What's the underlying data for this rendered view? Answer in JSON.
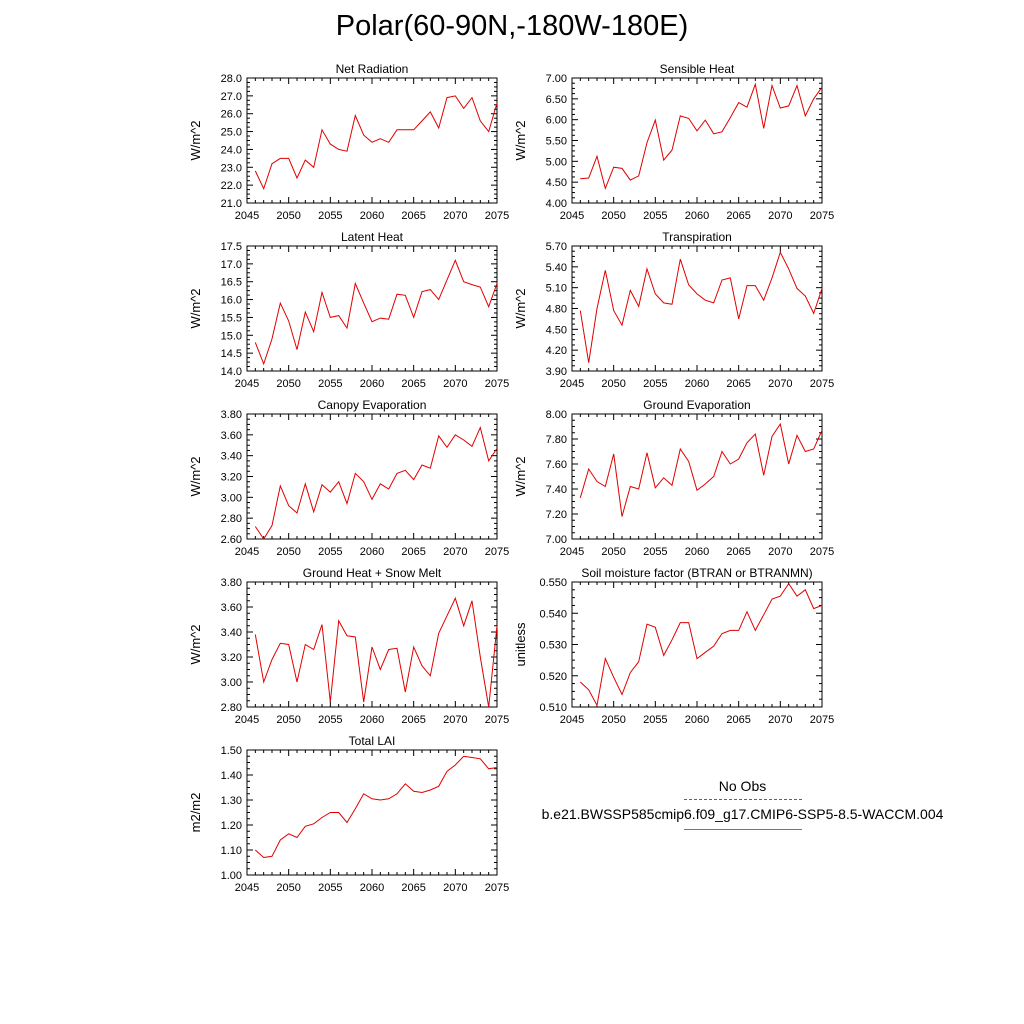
{
  "title": "Polar(60-90N,-180W-180E)",
  "legend": {
    "obs_label": "No Obs",
    "model_label": "b.e21.BWSSP585cmip6.f09_g17.CMIP6-SSP5-8.5-WACCM.004",
    "model_color": "#e00000"
  },
  "chart_data": [
    {
      "type": "line",
      "title": "Net Radiation",
      "ylabel": "W/m^2",
      "xlim": [
        2045,
        2075
      ],
      "ylim": [
        21.0,
        28.0
      ],
      "xticks": [
        "2045",
        "2050",
        "2055",
        "2060",
        "2065",
        "2070",
        "2075"
      ],
      "yticks": [
        "21.0",
        "22.0",
        "23.0",
        "24.0",
        "25.0",
        "26.0",
        "27.0",
        "28.0"
      ],
      "x": [
        2046,
        2047,
        2048,
        2049,
        2050,
        2051,
        2052,
        2053,
        2054,
        2055,
        2056,
        2057,
        2058,
        2059,
        2060,
        2061,
        2062,
        2063,
        2064,
        2065,
        2066,
        2067,
        2068,
        2069,
        2070,
        2071,
        2072,
        2073,
        2074,
        2075
      ],
      "series": [
        {
          "values": [
            22.8,
            21.8,
            23.2,
            23.5,
            23.5,
            22.4,
            23.4,
            23.0,
            25.1,
            24.3,
            24.0,
            23.9,
            25.9,
            24.8,
            24.4,
            24.6,
            24.4,
            25.1,
            25.1,
            25.1,
            25.6,
            26.1,
            25.2,
            26.9,
            27.0,
            26.3,
            26.9,
            25.6,
            25.0,
            26.6
          ],
          "color": "#e00000"
        }
      ]
    },
    {
      "type": "line",
      "title": "Sensible Heat",
      "ylabel": "W/m^2",
      "xlim": [
        2045,
        2075
      ],
      "ylim": [
        4.0,
        7.0
      ],
      "xticks": [
        "2045",
        "2050",
        "2055",
        "2060",
        "2065",
        "2070",
        "2075"
      ],
      "yticks": [
        "4.00",
        "4.50",
        "5.00",
        "5.50",
        "6.00",
        "6.50",
        "7.00"
      ],
      "x": [
        2046,
        2047,
        2048,
        2049,
        2050,
        2051,
        2052,
        2053,
        2054,
        2055,
        2056,
        2057,
        2058,
        2059,
        2060,
        2061,
        2062,
        2063,
        2064,
        2065,
        2066,
        2067,
        2068,
        2069,
        2070,
        2071,
        2072,
        2073,
        2074,
        2075
      ],
      "series": [
        {
          "values": [
            4.58,
            4.6,
            5.12,
            4.35,
            4.86,
            4.83,
            4.55,
            4.65,
            5.45,
            5.99,
            5.03,
            5.27,
            6.09,
            6.03,
            5.73,
            5.99,
            5.66,
            5.71,
            6.05,
            6.41,
            6.3,
            6.85,
            5.79,
            6.82,
            6.28,
            6.33,
            6.82,
            6.09,
            6.5,
            6.78
          ],
          "color": "#e00000"
        }
      ]
    },
    {
      "type": "line",
      "title": "Latent Heat",
      "ylabel": "W/m^2",
      "xlim": [
        2045,
        2075
      ],
      "ylim": [
        14.0,
        17.5
      ],
      "xticks": [
        "2045",
        "2050",
        "2055",
        "2060",
        "2065",
        "2070",
        "2075"
      ],
      "yticks": [
        "14.0",
        "14.5",
        "15.0",
        "15.5",
        "16.0",
        "16.5",
        "17.0",
        "17.5"
      ],
      "x": [
        2046,
        2047,
        2048,
        2049,
        2050,
        2051,
        2052,
        2053,
        2054,
        2055,
        2056,
        2057,
        2058,
        2059,
        2060,
        2061,
        2062,
        2063,
        2064,
        2065,
        2066,
        2067,
        2068,
        2069,
        2070,
        2071,
        2072,
        2073,
        2074,
        2075
      ],
      "series": [
        {
          "values": [
            14.8,
            14.2,
            14.9,
            15.9,
            15.4,
            14.6,
            15.65,
            15.1,
            16.2,
            15.5,
            15.55,
            15.2,
            16.45,
            15.9,
            15.38,
            15.48,
            15.45,
            16.15,
            16.12,
            15.5,
            16.22,
            16.28,
            16.0,
            16.55,
            17.1,
            16.5,
            16.42,
            16.35,
            15.8,
            16.45
          ],
          "color": "#e00000"
        }
      ]
    },
    {
      "type": "line",
      "title": "Transpiration",
      "ylabel": "W/m^2",
      "xlim": [
        2045,
        2075
      ],
      "ylim": [
        3.9,
        5.7
      ],
      "xticks": [
        "2045",
        "2050",
        "2055",
        "2060",
        "2065",
        "2070",
        "2075"
      ],
      "yticks": [
        "3.90",
        "4.20",
        "4.50",
        "4.80",
        "5.10",
        "5.40",
        "5.70"
      ],
      "x": [
        2046,
        2047,
        2048,
        2049,
        2050,
        2051,
        2052,
        2053,
        2054,
        2055,
        2056,
        2057,
        2058,
        2059,
        2060,
        2061,
        2062,
        2063,
        2064,
        2065,
        2066,
        2067,
        2068,
        2069,
        2070,
        2071,
        2072,
        2073,
        2074,
        2075
      ],
      "series": [
        {
          "values": [
            4.77,
            4.02,
            4.8,
            5.35,
            4.77,
            4.56,
            5.06,
            4.83,
            5.37,
            5.01,
            4.88,
            4.86,
            5.51,
            5.14,
            5.01,
            4.92,
            4.88,
            5.21,
            5.24,
            4.65,
            5.13,
            5.13,
            4.92,
            5.24,
            5.61,
            5.37,
            5.09,
            4.98,
            4.73,
            5.09
          ],
          "color": "#e00000"
        }
      ]
    },
    {
      "type": "line",
      "title": "Canopy Evaporation",
      "ylabel": "W/m^2",
      "xlim": [
        2045,
        2075
      ],
      "ylim": [
        2.6,
        3.8
      ],
      "xticks": [
        "2045",
        "2050",
        "2055",
        "2060",
        "2065",
        "2070",
        "2075"
      ],
      "yticks": [
        "2.60",
        "2.80",
        "3.00",
        "3.20",
        "3.40",
        "3.60",
        "3.80"
      ],
      "x": [
        2046,
        2047,
        2048,
        2049,
        2050,
        2051,
        2052,
        2053,
        2054,
        2055,
        2056,
        2057,
        2058,
        2059,
        2060,
        2061,
        2062,
        2063,
        2064,
        2065,
        2066,
        2067,
        2068,
        2069,
        2070,
        2071,
        2072,
        2073,
        2074,
        2075
      ],
      "series": [
        {
          "values": [
            2.72,
            2.6,
            2.73,
            3.11,
            2.92,
            2.85,
            3.13,
            2.86,
            3.12,
            3.05,
            3.15,
            2.94,
            3.23,
            3.15,
            2.98,
            3.13,
            3.08,
            3.23,
            3.26,
            3.17,
            3.31,
            3.28,
            3.59,
            3.48,
            3.6,
            3.55,
            3.49,
            3.67,
            3.35,
            3.47
          ],
          "color": "#e00000"
        }
      ]
    },
    {
      "type": "line",
      "title": "Ground Evaporation",
      "ylabel": "W/m^2",
      "xlim": [
        2045,
        2075
      ],
      "ylim": [
        7.0,
        8.0
      ],
      "xticks": [
        "2045",
        "2050",
        "2055",
        "2060",
        "2065",
        "2070",
        "2075"
      ],
      "yticks": [
        "7.00",
        "7.20",
        "7.40",
        "7.60",
        "7.80",
        "8.00"
      ],
      "x": [
        2046,
        2047,
        2048,
        2049,
        2050,
        2051,
        2052,
        2053,
        2054,
        2055,
        2056,
        2057,
        2058,
        2059,
        2060,
        2061,
        2062,
        2063,
        2064,
        2065,
        2066,
        2067,
        2068,
        2069,
        2070,
        2071,
        2072,
        2073,
        2074,
        2075
      ],
      "series": [
        {
          "values": [
            7.33,
            7.56,
            7.46,
            7.42,
            7.68,
            7.18,
            7.42,
            7.4,
            7.69,
            7.41,
            7.49,
            7.43,
            7.72,
            7.62,
            7.39,
            7.44,
            7.5,
            7.7,
            7.6,
            7.64,
            7.77,
            7.84,
            7.51,
            7.82,
            7.92,
            7.6,
            7.83,
            7.7,
            7.72,
            7.87
          ],
          "color": "#e00000"
        }
      ]
    },
    {
      "type": "line",
      "title": "Ground Heat + Snow Melt",
      "ylabel": "W/m^2",
      "xlim": [
        2045,
        2075
      ],
      "ylim": [
        2.8,
        3.8
      ],
      "xticks": [
        "2045",
        "2050",
        "2055",
        "2060",
        "2065",
        "2070",
        "2075"
      ],
      "yticks": [
        "2.80",
        "3.00",
        "3.20",
        "3.40",
        "3.60",
        "3.80"
      ],
      "x": [
        2046,
        2047,
        2048,
        2049,
        2050,
        2051,
        2052,
        2053,
        2054,
        2055,
        2056,
        2057,
        2058,
        2059,
        2060,
        2061,
        2062,
        2063,
        2064,
        2065,
        2066,
        2067,
        2068,
        2069,
        2070,
        2071,
        2072,
        2073,
        2074,
        2075
      ],
      "series": [
        {
          "values": [
            3.38,
            3.0,
            3.18,
            3.31,
            3.3,
            3.0,
            3.3,
            3.26,
            3.46,
            2.84,
            3.49,
            3.37,
            3.36,
            2.84,
            3.28,
            3.1,
            3.26,
            3.27,
            2.92,
            3.28,
            3.13,
            3.05,
            3.39,
            3.53,
            3.67,
            3.45,
            3.65,
            3.2,
            2.8,
            3.45
          ],
          "color": "#e00000"
        }
      ]
    },
    {
      "type": "line",
      "title": "Soil moisture factor (BTRAN or BTRANMN)",
      "ylabel": "unitless",
      "xlim": [
        2045,
        2075
      ],
      "ylim": [
        0.51,
        0.55
      ],
      "xticks": [
        "2045",
        "2050",
        "2055",
        "2060",
        "2065",
        "2070",
        "2075"
      ],
      "yticks": [
        "0.510",
        "0.520",
        "0.530",
        "0.540",
        "0.550"
      ],
      "x": [
        2046,
        2047,
        2048,
        2049,
        2050,
        2051,
        2052,
        2053,
        2054,
        2055,
        2056,
        2057,
        2058,
        2059,
        2060,
        2061,
        2062,
        2063,
        2064,
        2065,
        2066,
        2067,
        2068,
        2069,
        2070,
        2071,
        2072,
        2073,
        2074,
        2075
      ],
      "series": [
        {
          "values": [
            0.518,
            0.5155,
            0.5105,
            0.5255,
            0.5195,
            0.514,
            0.521,
            0.5245,
            0.5365,
            0.5355,
            0.5265,
            0.5315,
            0.537,
            0.537,
            0.5255,
            0.5275,
            0.5295,
            0.5335,
            0.5345,
            0.5345,
            0.5405,
            0.5345,
            0.5395,
            0.5445,
            0.5455,
            0.5495,
            0.5455,
            0.5475,
            0.5415,
            0.5425
          ],
          "color": "#e00000"
        }
      ]
    },
    {
      "type": "line",
      "title": "Total LAI",
      "ylabel": "m2/m2",
      "xlim": [
        2045,
        2075
      ],
      "ylim": [
        1.0,
        1.5
      ],
      "xticks": [
        "2045",
        "2050",
        "2055",
        "2060",
        "2065",
        "2070",
        "2075"
      ],
      "yticks": [
        "1.00",
        "1.10",
        "1.20",
        "1.30",
        "1.40",
        "1.50"
      ],
      "x": [
        2046,
        2047,
        2048,
        2049,
        2050,
        2051,
        2052,
        2053,
        2054,
        2055,
        2056,
        2057,
        2058,
        2059,
        2060,
        2061,
        2062,
        2063,
        2064,
        2065,
        2066,
        2067,
        2068,
        2069,
        2070,
        2071,
        2072,
        2073,
        2074,
        2075
      ],
      "series": [
        {
          "values": [
            1.1,
            1.07,
            1.075,
            1.14,
            1.165,
            1.15,
            1.195,
            1.205,
            1.23,
            1.25,
            1.25,
            1.21,
            1.265,
            1.325,
            1.305,
            1.3,
            1.305,
            1.325,
            1.365,
            1.335,
            1.33,
            1.34,
            1.355,
            1.415,
            1.44,
            1.475,
            1.47,
            1.465,
            1.425,
            1.43
          ],
          "color": "#e00000"
        }
      ]
    }
  ]
}
